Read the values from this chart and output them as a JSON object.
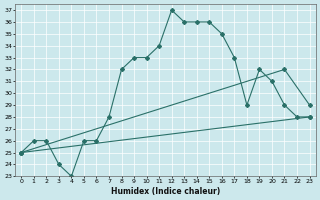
{
  "title": "",
  "xlabel": "Humidex (Indice chaleur)",
  "background_color": "#cce8ec",
  "line_color": "#2a7068",
  "xlim": [
    -0.5,
    23.5
  ],
  "ylim": [
    23,
    37.5
  ],
  "xticks": [
    0,
    1,
    2,
    3,
    4,
    5,
    6,
    7,
    8,
    9,
    10,
    11,
    12,
    13,
    14,
    15,
    16,
    17,
    18,
    19,
    20,
    21,
    22,
    23
  ],
  "yticks": [
    23,
    24,
    25,
    26,
    27,
    28,
    29,
    30,
    31,
    32,
    33,
    34,
    35,
    36,
    37
  ],
  "series_main": {
    "x": [
      0,
      1,
      2,
      3,
      4,
      5,
      6,
      7,
      8,
      9,
      10,
      11,
      12,
      13,
      14,
      15,
      16,
      17,
      18,
      19,
      20,
      21,
      22,
      23
    ],
    "y": [
      25,
      26,
      26,
      24,
      23,
      26,
      26,
      28,
      32,
      33,
      33,
      34,
      37,
      36,
      36,
      36,
      35,
      33,
      29,
      32,
      31,
      29,
      28,
      28
    ]
  },
  "series_line1": {
    "x": [
      0,
      21,
      23
    ],
    "y": [
      25,
      32,
      29
    ]
  },
  "series_line2": {
    "x": [
      0,
      23
    ],
    "y": [
      25,
      28
    ]
  }
}
